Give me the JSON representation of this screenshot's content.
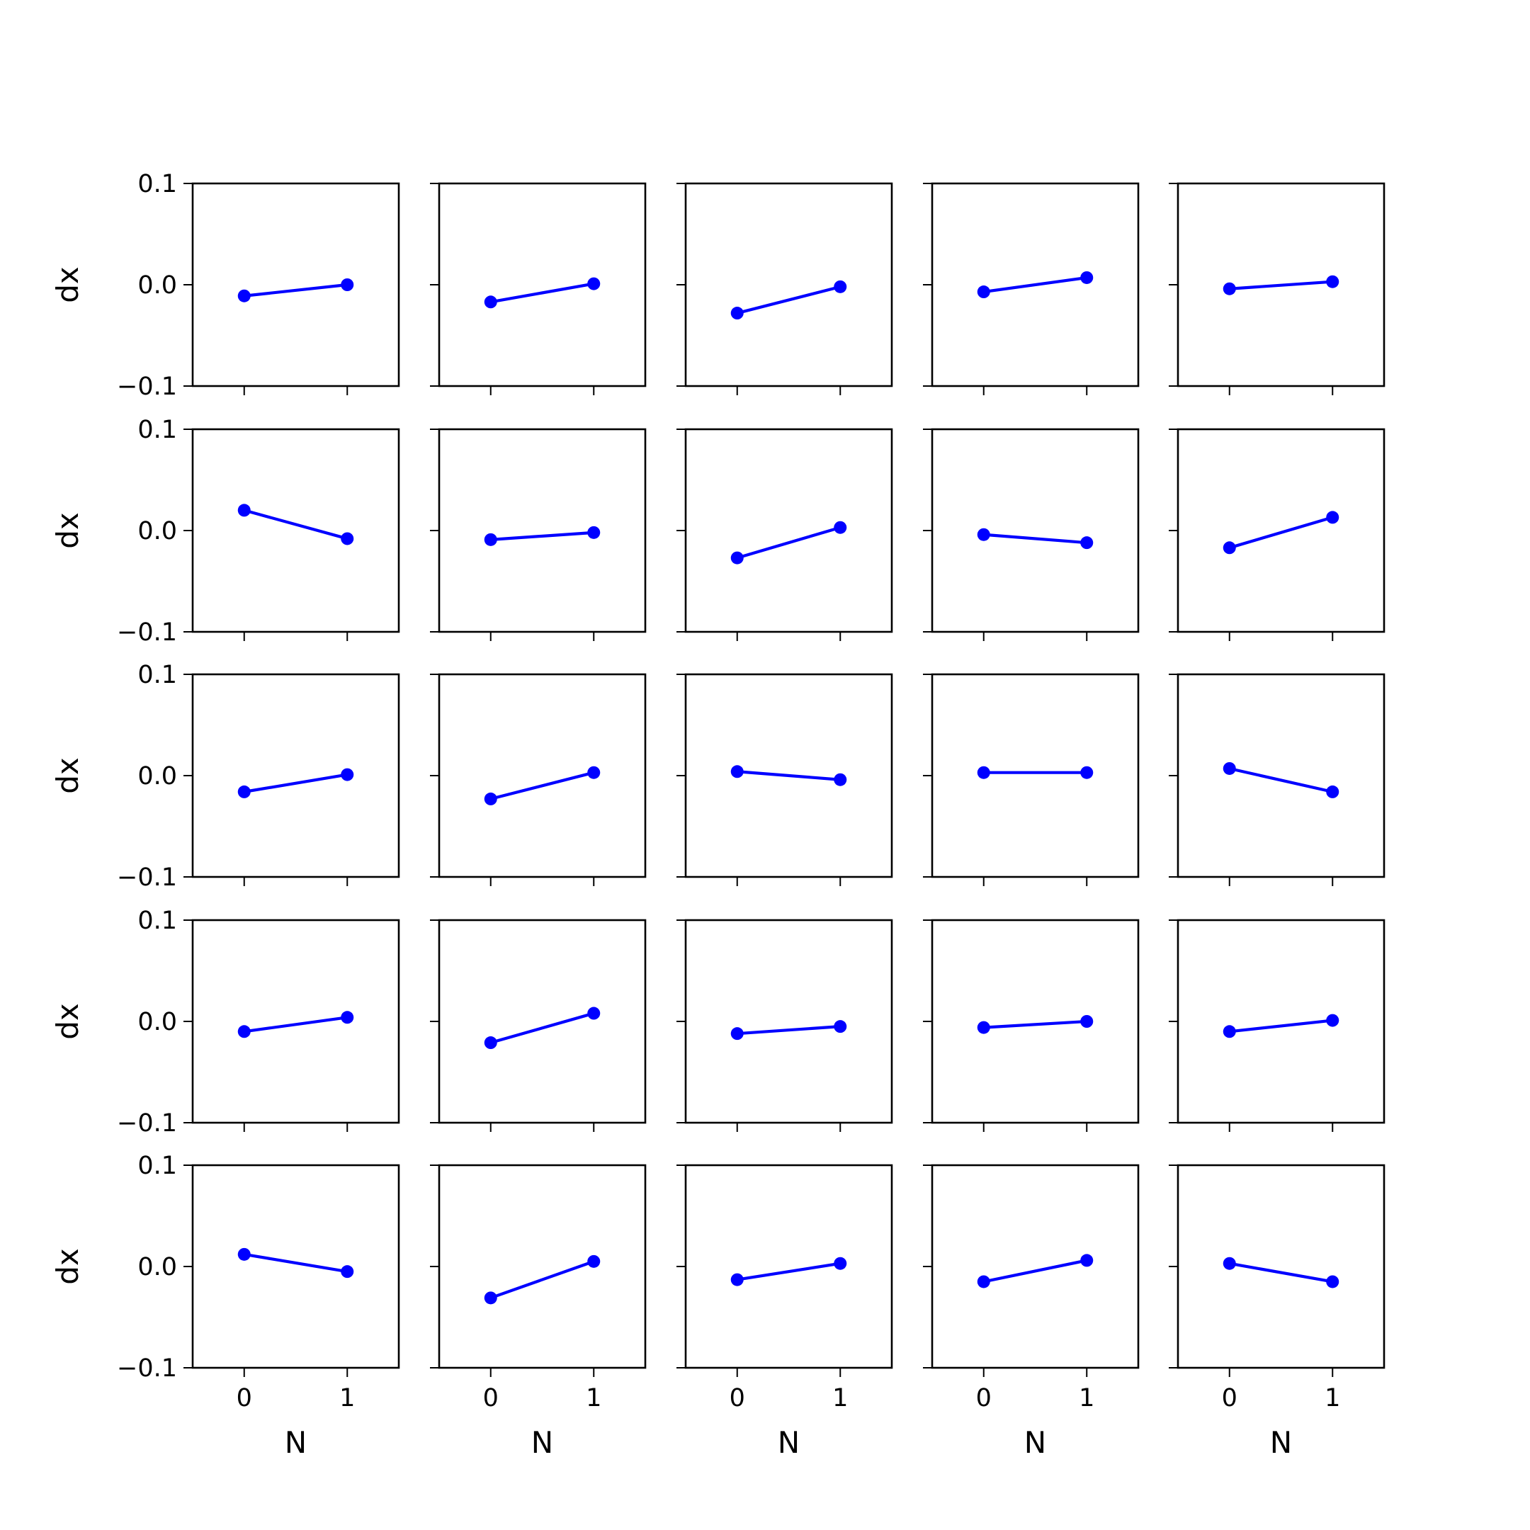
{
  "chart_data": {
    "type": "line",
    "layout": {
      "rows": 5,
      "cols": 5
    },
    "xlabel": "N",
    "ylabel": "dx",
    "xlim": [
      -0.5,
      1.5
    ],
    "ylim": [
      -0.1,
      0.1
    ],
    "xticks": [
      0,
      1
    ],
    "xtick_labels": [
      "0",
      "1"
    ],
    "yticks": [
      0.1,
      0.0,
      -0.1
    ],
    "ytick_labels": [
      "0.1",
      "0.0",
      "−0.1"
    ],
    "line_color": "#0000ff",
    "marker": "circle",
    "panels": [
      {
        "x": [
          0,
          1
        ],
        "y": [
          -0.011,
          0.0
        ]
      },
      {
        "x": [
          0,
          1
        ],
        "y": [
          -0.017,
          0.001
        ]
      },
      {
        "x": [
          0,
          1
        ],
        "y": [
          -0.028,
          -0.002
        ]
      },
      {
        "x": [
          0,
          1
        ],
        "y": [
          -0.007,
          0.007
        ]
      },
      {
        "x": [
          0,
          1
        ],
        "y": [
          -0.004,
          0.003
        ]
      },
      {
        "x": [
          0,
          1
        ],
        "y": [
          0.02,
          -0.008
        ]
      },
      {
        "x": [
          0,
          1
        ],
        "y": [
          -0.009,
          -0.002
        ]
      },
      {
        "x": [
          0,
          1
        ],
        "y": [
          -0.027,
          0.003
        ]
      },
      {
        "x": [
          0,
          1
        ],
        "y": [
          -0.004,
          -0.012
        ]
      },
      {
        "x": [
          0,
          1
        ],
        "y": [
          -0.017,
          0.013
        ]
      },
      {
        "x": [
          0,
          1
        ],
        "y": [
          -0.016,
          0.001
        ]
      },
      {
        "x": [
          0,
          1
        ],
        "y": [
          -0.023,
          0.003
        ]
      },
      {
        "x": [
          0,
          1
        ],
        "y": [
          0.004,
          -0.004
        ]
      },
      {
        "x": [
          0,
          1
        ],
        "y": [
          0.003,
          0.003
        ]
      },
      {
        "x": [
          0,
          1
        ],
        "y": [
          0.007,
          -0.016
        ]
      },
      {
        "x": [
          0,
          1
        ],
        "y": [
          -0.01,
          0.004
        ]
      },
      {
        "x": [
          0,
          1
        ],
        "y": [
          -0.021,
          0.008
        ]
      },
      {
        "x": [
          0,
          1
        ],
        "y": [
          -0.012,
          -0.005
        ]
      },
      {
        "x": [
          0,
          1
        ],
        "y": [
          -0.006,
          0.0
        ]
      },
      {
        "x": [
          0,
          1
        ],
        "y": [
          -0.01,
          0.001
        ]
      },
      {
        "x": [
          0,
          1
        ],
        "y": [
          0.012,
          -0.005
        ]
      },
      {
        "x": [
          0,
          1
        ],
        "y": [
          -0.031,
          0.005
        ]
      },
      {
        "x": [
          0,
          1
        ],
        "y": [
          -0.013,
          0.003
        ]
      },
      {
        "x": [
          0,
          1
        ],
        "y": [
          -0.015,
          0.006
        ]
      },
      {
        "x": [
          0,
          1
        ],
        "y": [
          0.003,
          -0.015
        ]
      }
    ]
  }
}
